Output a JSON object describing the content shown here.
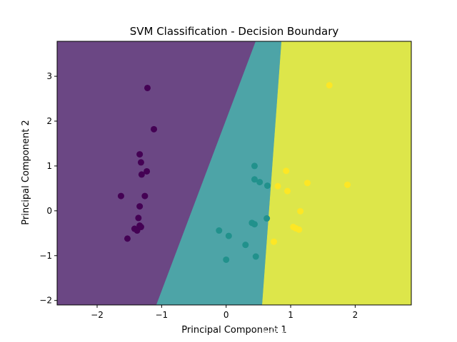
{
  "chart_data": {
    "type": "scatter",
    "title": "SVM Classification - Decision Boundary",
    "xlabel": "Principal Component 1",
    "ylabel": "Principal Component 2",
    "xlim": [
      -2.62,
      2.87
    ],
    "ylim": [
      -2.1,
      3.78
    ],
    "xticks": [
      -2,
      -1,
      0,
      1,
      2
    ],
    "yticks": [
      -2,
      -1,
      0,
      1,
      2,
      3
    ],
    "grid": false,
    "legend": "none",
    "regions": [
      {
        "class": 0,
        "color": "#6b4784"
      },
      {
        "class": 1,
        "color": "#4da4a7"
      },
      {
        "class": 2,
        "color": "#dde64a"
      }
    ],
    "boundaries": [
      {
        "between": [
          0,
          1
        ],
        "points": [
          [
            -1.08,
            -2.1
          ],
          [
            0.46,
            3.78
          ]
        ]
      },
      {
        "between": [
          1,
          2
        ],
        "points": [
          [
            0.56,
            -2.1
          ],
          [
            0.86,
            3.78
          ]
        ]
      }
    ],
    "series": [
      {
        "class": 0,
        "color": "#440154",
        "points": [
          [
            -1.22,
            2.74
          ],
          [
            -1.12,
            1.82
          ],
          [
            -1.34,
            1.26
          ],
          [
            -1.32,
            1.08
          ],
          [
            -1.23,
            0.88
          ],
          [
            -1.31,
            0.81
          ],
          [
            -1.63,
            0.33
          ],
          [
            -1.26,
            0.33
          ],
          [
            -1.34,
            0.1
          ],
          [
            -1.36,
            -0.16
          ],
          [
            -1.42,
            -0.4
          ],
          [
            -1.38,
            -0.44
          ],
          [
            -1.34,
            -0.33
          ],
          [
            -1.32,
            -0.36
          ],
          [
            -1.53,
            -0.62
          ]
        ]
      },
      {
        "class": 1,
        "color": "#21918c",
        "points": [
          [
            0.44,
            1.0
          ],
          [
            0.44,
            0.7
          ],
          [
            0.52,
            0.64
          ],
          [
            0.64,
            0.56
          ],
          [
            0.63,
            -0.17
          ],
          [
            0.4,
            -0.27
          ],
          [
            0.44,
            -0.3
          ],
          [
            -0.11,
            -0.44
          ],
          [
            0.04,
            -0.56
          ],
          [
            0.3,
            -0.76
          ],
          [
            0.46,
            -1.02
          ],
          [
            0.0,
            -1.09
          ]
        ]
      },
      {
        "class": 2,
        "color": "#fde725",
        "points": [
          [
            1.6,
            2.8
          ],
          [
            0.93,
            0.89
          ],
          [
            1.26,
            0.62
          ],
          [
            1.88,
            0.58
          ],
          [
            0.8,
            0.55
          ],
          [
            0.95,
            0.44
          ],
          [
            1.15,
            -0.01
          ],
          [
            1.04,
            -0.36
          ],
          [
            1.08,
            -0.39
          ],
          [
            1.13,
            -0.42
          ],
          [
            0.74,
            -0.69
          ]
        ]
      }
    ]
  },
  "watermark": "CSDN @m0_敲代码的彭于晏168"
}
